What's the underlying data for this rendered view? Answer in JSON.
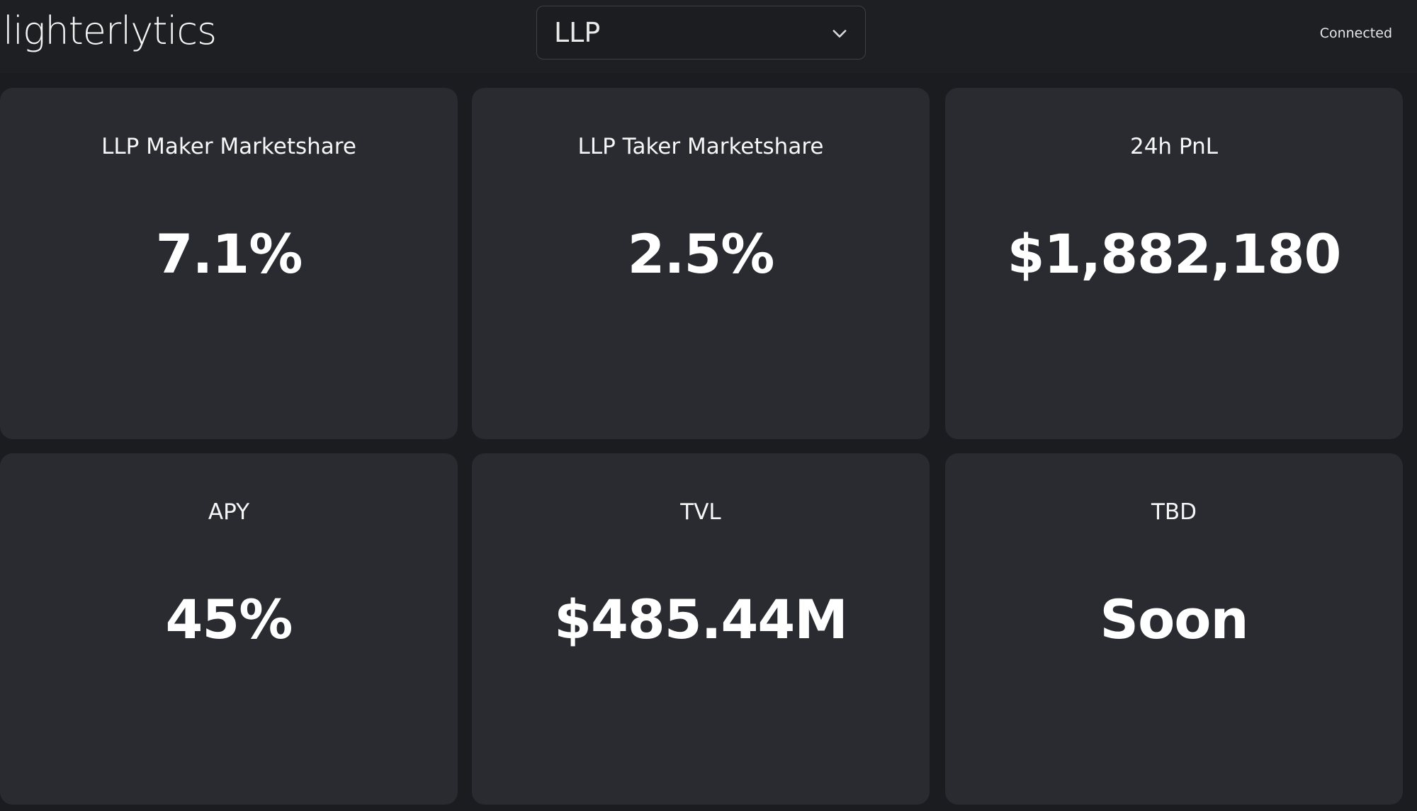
{
  "header": {
    "logo": "lighterlytics",
    "selector": {
      "value": "LLP",
      "icon": "chevron-down-icon"
    },
    "status": "Connected"
  },
  "cards": [
    {
      "title": "LLP Maker Marketshare",
      "value": "7.1%"
    },
    {
      "title": "LLP Taker Marketshare",
      "value": "2.5%"
    },
    {
      "title": "24h PnL",
      "value": "$1,882,180"
    },
    {
      "title": "APY",
      "value": "45%"
    },
    {
      "title": "TVL",
      "value": "$485.44M"
    },
    {
      "title": "TBD",
      "value": "Soon"
    }
  ],
  "colors": {
    "background": "#1b1c20",
    "header": "#1e1f23",
    "card": "#2a2b31",
    "text": "#ffffff"
  }
}
